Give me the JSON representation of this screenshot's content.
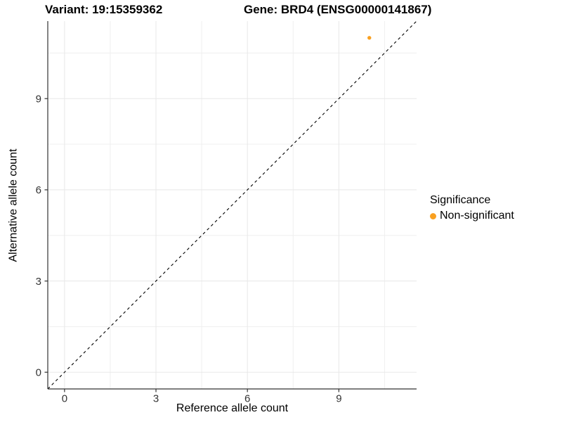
{
  "chart_data": {
    "type": "scatter",
    "titles": {
      "variant": "Variant: 19:15359362",
      "gene": "Gene: BRD4 (ENSG00000141867)"
    },
    "xlabel": "Reference allele count",
    "ylabel": "Alternative allele count",
    "xlim": [
      -0.55,
      11.55
    ],
    "ylim": [
      -0.55,
      11.55
    ],
    "x_ticks": [
      0,
      3,
      6,
      9
    ],
    "y_ticks": [
      0,
      3,
      6,
      9
    ],
    "x_minor_ticks": [
      1.5,
      4.5,
      7.5,
      10.5
    ],
    "y_minor_ticks": [
      1.5,
      4.5,
      7.5,
      10.5
    ],
    "grid": "on",
    "reference_line": {
      "type": "identity",
      "slope": 1,
      "intercept": 0,
      "style": "dashed",
      "color": "#000000"
    },
    "series": [
      {
        "name": "Non-significant",
        "color": "#F9A020",
        "points": [
          {
            "x": 10,
            "y": 11
          }
        ]
      }
    ],
    "legend": {
      "title": "Significance",
      "position": "right",
      "entries": [
        {
          "label": "Non-significant",
          "color": "#F9A020"
        }
      ]
    },
    "style": {
      "background": "#FFFFFF",
      "grid_major_color": "#E8E8E8",
      "grid_minor_color": "#EFEFEF",
      "axis_line_color": "#333333",
      "tick_mark_color": "#333333",
      "tick_label_color": "#333333",
      "point_radius_px": 2.7,
      "tick_label_font_px": 15
    }
  }
}
